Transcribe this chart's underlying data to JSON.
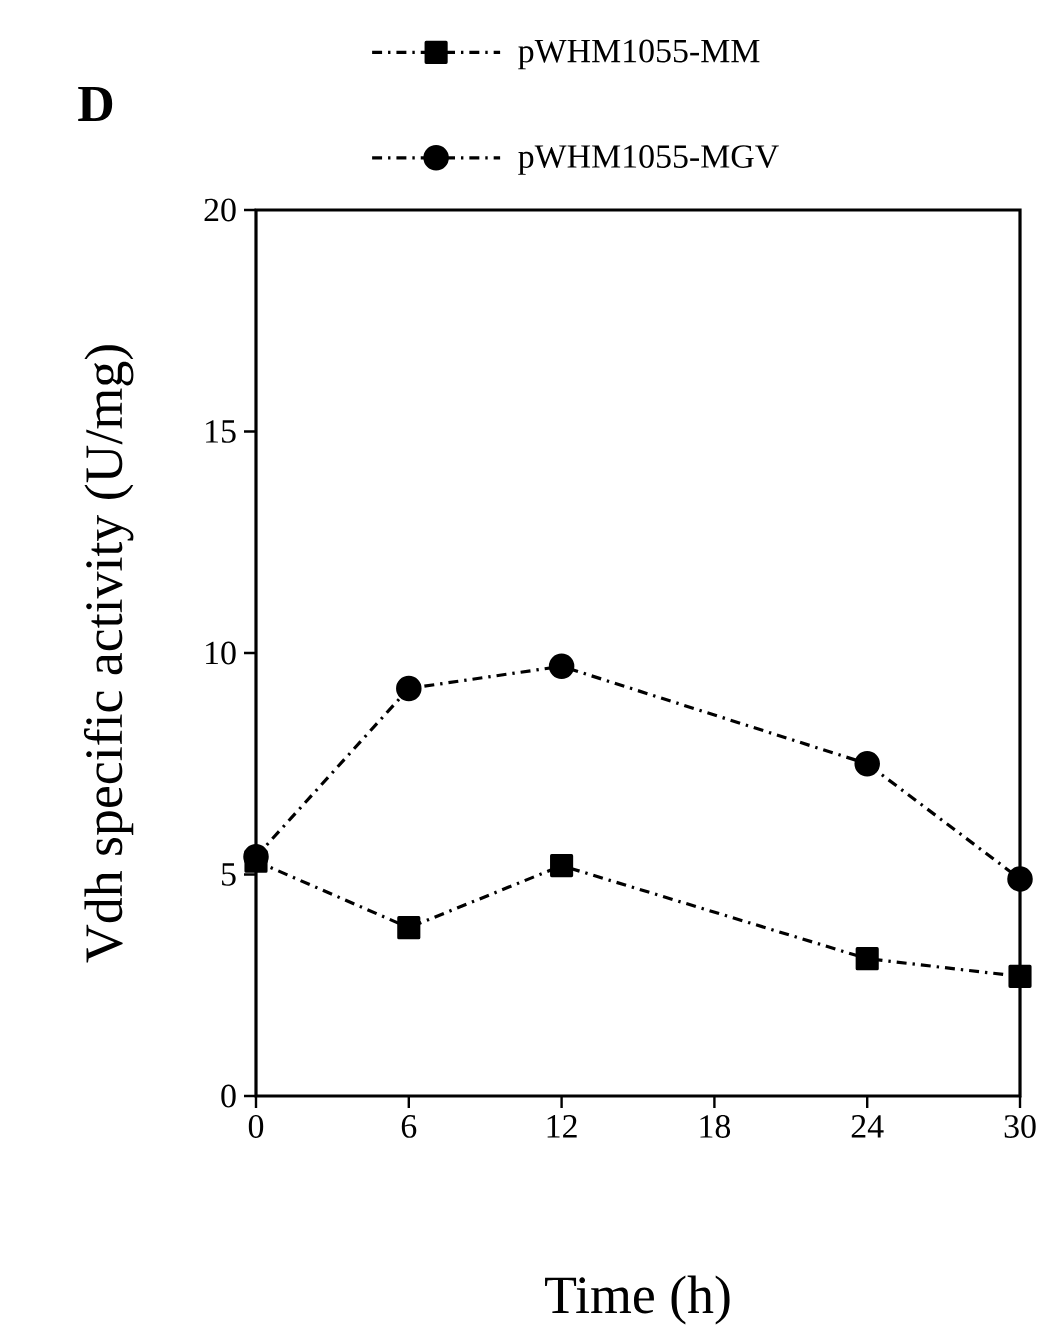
{
  "chart_data": {
    "type": "line",
    "xlabel": "Time (h)",
    "ylabel": "Vdh specific activity (U/mg)",
    "annotations": [
      "D"
    ],
    "x": [
      0,
      6,
      12,
      24,
      30
    ],
    "series": [
      {
        "name": "pWHM1055-MM",
        "color": "#000000",
        "marker": "square",
        "values": [
          5.3,
          3.8,
          5.2,
          3.1,
          2.7
        ]
      },
      {
        "name": "pWHM1055-MGV",
        "color": "#000000",
        "marker": "circle",
        "values": [
          5.4,
          9.2,
          9.7,
          7.5,
          4.9
        ]
      }
    ],
    "xlim": [
      0,
      30
    ],
    "ylim": [
      0,
      20
    ],
    "xticks": [
      0,
      6,
      12,
      18,
      24,
      30
    ],
    "yticks": [
      0,
      5,
      10,
      15,
      20
    ],
    "legend": "top",
    "line_style": "dashed",
    "grid": false
  }
}
